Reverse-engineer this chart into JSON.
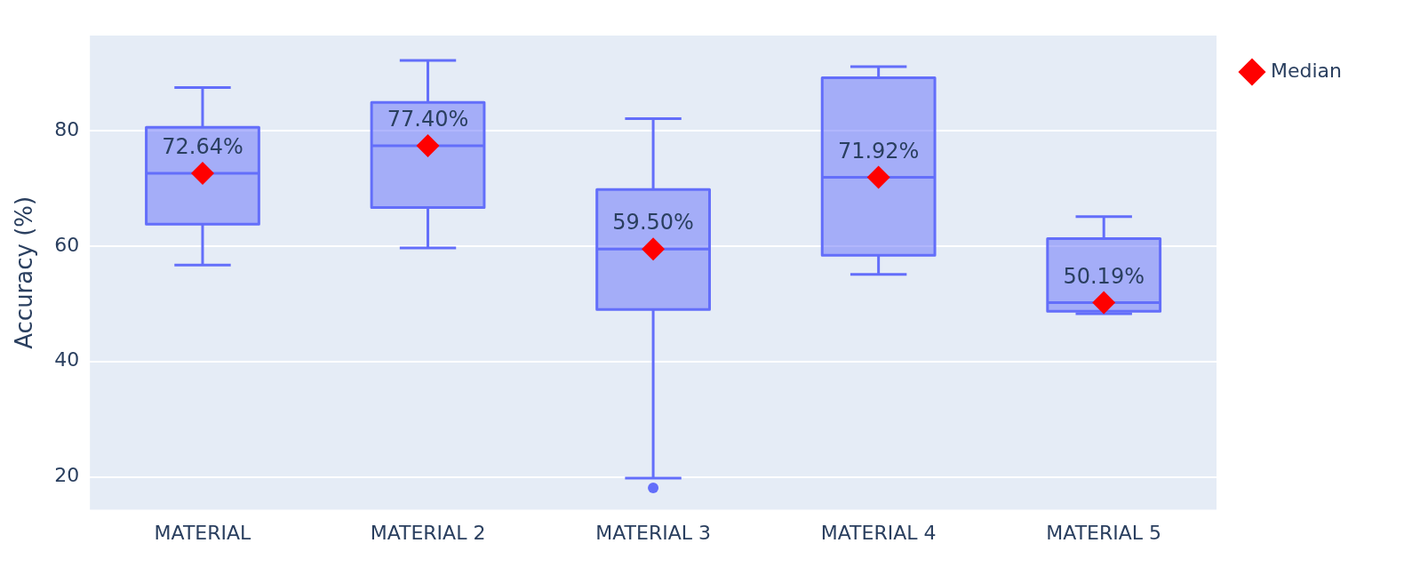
{
  "chart_data": {
    "type": "box",
    "categories": [
      "MATERIAL",
      "MATERIAL 2",
      "MATERIAL 3",
      "MATERIAL 4",
      "MATERIAL 5"
    ],
    "ylabel": "Accuracy (%)",
    "ylim": [
      14.3,
      96.5
    ],
    "yticks": [
      20,
      40,
      60,
      80
    ],
    "grid": "y",
    "legend": "top right",
    "marker": "diamond",
    "series": [
      {
        "type": "box",
        "color": "#636efa",
        "boxes": [
          {
            "low": 56.7,
            "q1": 63.8,
            "median": 72.64,
            "q3": 80.6,
            "high": 87.5
          },
          {
            "low": 59.7,
            "q1": 66.7,
            "median": 77.4,
            "q3": 84.9,
            "high": 92.2
          },
          {
            "low": 19.8,
            "q1": 49.0,
            "median": 59.5,
            "q3": 69.8,
            "high": 82.1,
            "outliers": [
              18.1
            ]
          },
          {
            "low": 55.1,
            "q1": 58.4,
            "median": 71.92,
            "q3": 89.2,
            "high": 91.1
          },
          {
            "low": 48.3,
            "q1": 48.7,
            "median": 50.19,
            "q3": 61.3,
            "high": 65.1
          }
        ]
      },
      {
        "type": "scatter",
        "name": "Median",
        "color": "#ff0000",
        "x": [
          "MATERIAL",
          "MATERIAL 2",
          "MATERIAL 3",
          "MATERIAL 4",
          "MATERIAL 5"
        ],
        "values": [
          72.64,
          77.4,
          59.5,
          71.92,
          50.19
        ],
        "value_labels": [
          "72.64%",
          "77.40%",
          "59.50%",
          "71.92%",
          "50.19%"
        ]
      }
    ]
  }
}
